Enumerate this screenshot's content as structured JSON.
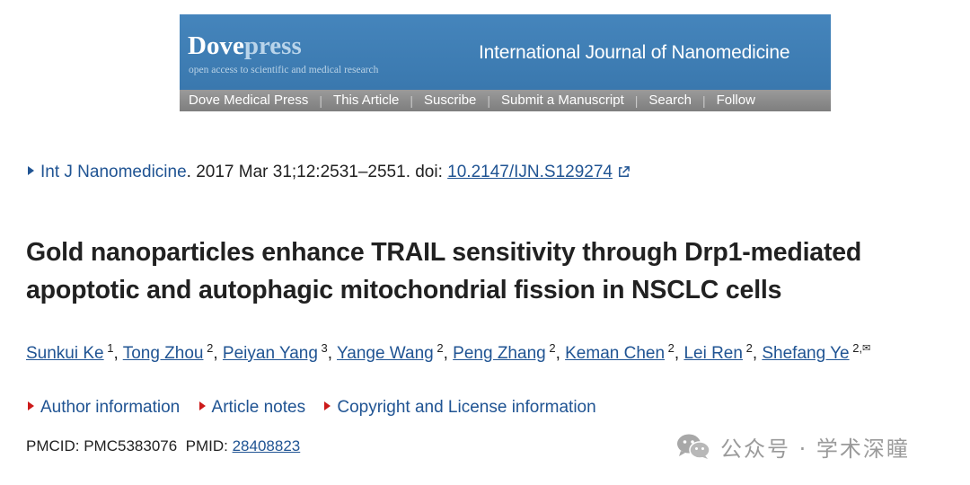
{
  "banner": {
    "brand_main": "Dove",
    "brand_accent": "press",
    "tagline": "open access to scientific and medical research",
    "journal": "International Journal of Nanomedicine",
    "nav": [
      "Dove Medical Press",
      "This Article",
      "Suscribe",
      "Submit a Manuscript",
      "Search",
      "Follow"
    ],
    "colors": {
      "top": "#3f7fb6",
      "nav": "#8b8b8b"
    }
  },
  "citation": {
    "journal": "Int J Nanomedicine",
    "details": ". 2017 Mar 31;12:2531–2551. doi: ",
    "doi": "10.2147/IJN.S129274",
    "icon": "external-link-icon"
  },
  "article": {
    "title": "Gold nanoparticles enhance TRAIL sensitivity through Drp1-mediated apoptotic and autophagic mitochondrial fission in NSCLC cells"
  },
  "authors": [
    {
      "name": "Sunkui Ke",
      "aff": "1"
    },
    {
      "name": "Tong Zhou",
      "aff": "2"
    },
    {
      "name": "Peiyan Yang",
      "aff": "3"
    },
    {
      "name": "Yange Wang",
      "aff": "2"
    },
    {
      "name": "Peng Zhang",
      "aff": "2"
    },
    {
      "name": "Keman Chen",
      "aff": "2"
    },
    {
      "name": "Lei Ren",
      "aff": "2"
    },
    {
      "name": "Shefang Ye",
      "aff": "2,"
    }
  ],
  "info_links": [
    "Author information",
    "Article notes",
    "Copyright and License information"
  ],
  "ids": {
    "pmcid_label": "PMCID: PMC5383076",
    "pmid_label": "PMID: ",
    "pmid": "28408823"
  },
  "watermark": {
    "text": "公众号 · 学术深瞳",
    "icon": "wechat-icon"
  },
  "colors": {
    "link": "#205493",
    "triangle_red": "#cc1a1a"
  }
}
